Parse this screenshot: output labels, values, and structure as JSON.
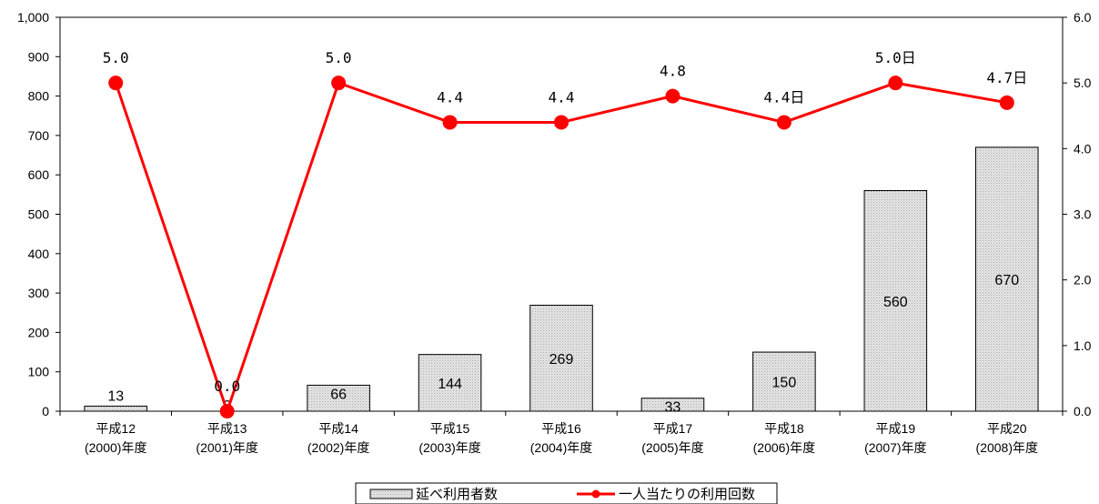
{
  "chart_data": {
    "type": "bar",
    "categories": [
      [
        "平成12",
        "(2000)年度"
      ],
      [
        "平成13",
        "(2001)年度"
      ],
      [
        "平成14",
        "(2002)年度"
      ],
      [
        "平成15",
        "(2003)年度"
      ],
      [
        "平成16",
        "(2004)年度"
      ],
      [
        "平成17",
        "(2005)年度"
      ],
      [
        "平成18",
        "(2006)年度"
      ],
      [
        "平成19",
        "(2007)年度"
      ],
      [
        "平成20",
        "(2008)年度"
      ]
    ],
    "series": [
      {
        "name": "延べ利用者数",
        "type": "bar",
        "axis": "left",
        "values": [
          13,
          0,
          66,
          144,
          269,
          33,
          150,
          560,
          670
        ],
        "labels": [
          "13",
          "0",
          "66",
          "144",
          "269",
          "33",
          "150",
          "560",
          "670"
        ],
        "color": "#d9d9d9"
      },
      {
        "name": "一人当たりの利用回数",
        "type": "line",
        "axis": "right",
        "values": [
          5.0,
          0.0,
          5.0,
          4.4,
          4.4,
          4.8,
          4.4,
          5.0,
          4.7
        ],
        "labels": [
          "5.0",
          "0.0",
          "5.0",
          "4.4",
          "4.4",
          "4.8",
          "4.4日",
          "5.0日",
          "4.7日"
        ],
        "color": "#ff0000"
      }
    ],
    "y_left": {
      "range": [
        0,
        1000
      ],
      "ticks": [
        0,
        100,
        200,
        300,
        400,
        500,
        600,
        700,
        800,
        900,
        1000
      ],
      "tick_labels": [
        "0",
        "100",
        "200",
        "300",
        "400",
        "500",
        "600",
        "700",
        "800",
        "900",
        "1,000"
      ]
    },
    "y_right": {
      "range": [
        0,
        6
      ],
      "ticks": [
        0,
        1,
        2,
        3,
        4,
        5,
        6
      ],
      "tick_labels": [
        "0.0",
        "1.0",
        "2.0",
        "3.0",
        "4.0",
        "5.0",
        "6.0"
      ]
    },
    "grid": false,
    "legend_position": "bottom-center"
  }
}
